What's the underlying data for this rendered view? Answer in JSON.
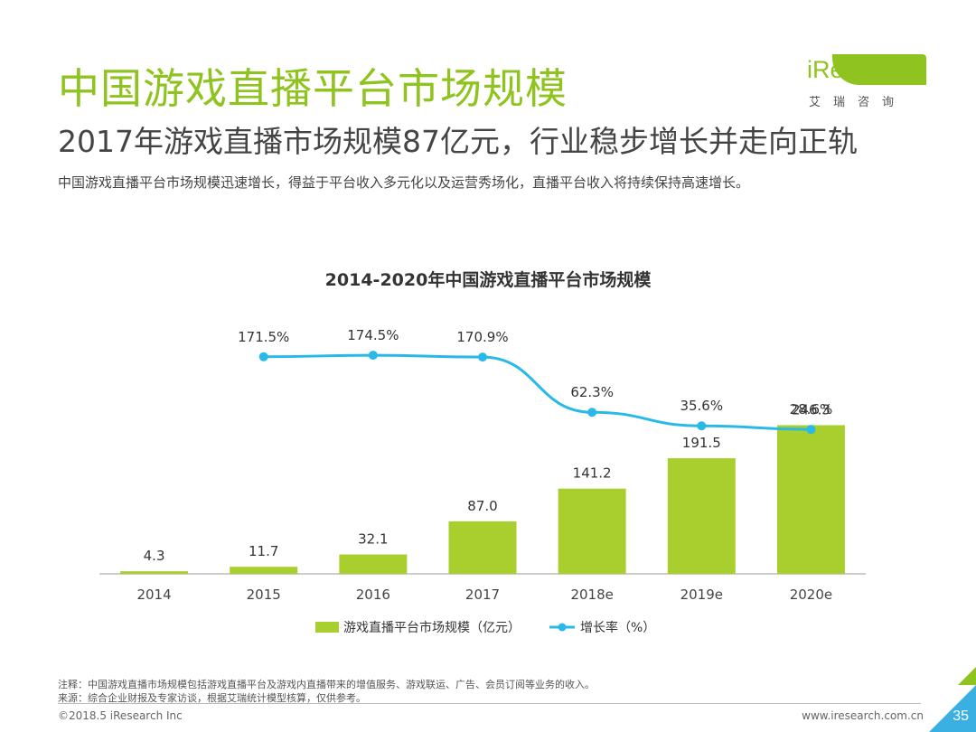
{
  "header": {
    "title": "中国游戏直播平台市场规模",
    "subtitle": "2017年游戏直播市场规模87亿元，行业稳步增长并走向正轨",
    "description": "中国游戏直播平台市场规模迅速增长，得益于平台收入多元化以及运营秀场化，直播平台收入将持续保持高速增长。"
  },
  "logo": {
    "name": "iResearch",
    "subtitle": "艾瑞咨询"
  },
  "colors": {
    "accent_green": "#8fc31f",
    "bar_green": "#a8cf2e",
    "line_blue": "#29b9e8"
  },
  "chart_data": {
    "type": "bar",
    "title": "2014-2020年中国游戏直播平台市场规模",
    "categories": [
      "2014",
      "2015",
      "2016",
      "2017",
      "2018e",
      "2019e",
      "2020e"
    ],
    "series": [
      {
        "name": "游戏直播平台市场规模（亿元）",
        "type": "bar",
        "values": [
          4.3,
          11.7,
          32.1,
          87.0,
          141.2,
          191.5,
          246.3
        ],
        "labels": [
          "4.3",
          "11.7",
          "32.1",
          "87.0",
          "141.2",
          "191.5",
          "246.3"
        ]
      },
      {
        "name": "增长率（%）",
        "type": "line",
        "values": [
          null,
          171.5,
          174.5,
          170.9,
          62.3,
          35.6,
          28.6
        ],
        "labels": [
          "",
          "171.5%",
          "174.5%",
          "170.9%",
          "62.3%",
          "35.6%",
          "28.6%"
        ]
      }
    ],
    "ylim_bar": [
      0,
      250
    ],
    "ylim_line": [
      0,
      180
    ],
    "legend": "bottom"
  },
  "footer": {
    "note": "注释：中国游戏直播市场规模包括游戏直播平台及游戏内直播带来的增值服务、游戏联运、广告、会员订阅等业务的收入。",
    "source": "来源：综合企业财报及专家访谈，根据艾瑞统计模型核算，仅供参考。",
    "copyright": "©2018.5 iResearch Inc",
    "website": "www.iresearch.com.cn",
    "page_number": "35"
  }
}
